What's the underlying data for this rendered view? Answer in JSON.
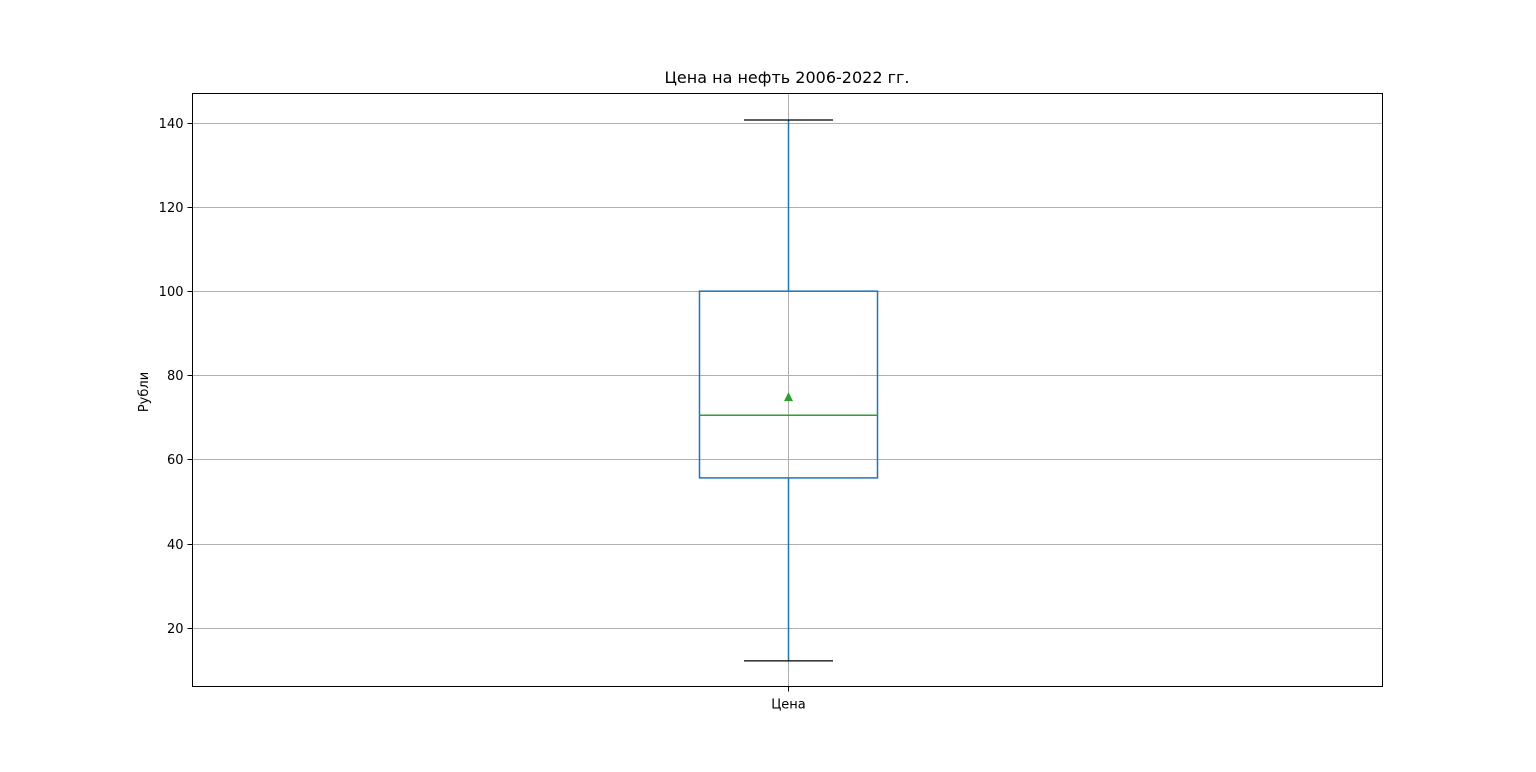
{
  "chart_data": {
    "type": "box",
    "title": "Цена на нефть 2006-2022 гг.",
    "xlabel": "",
    "ylabel": "Рубли",
    "categories": [
      "Цена"
    ],
    "ylim": [
      6,
      147
    ],
    "yticks": [
      20,
      40,
      60,
      80,
      100,
      120,
      140
    ],
    "grid": true,
    "boxes": [
      {
        "category": "Цена",
        "whisker_low": 12.1,
        "q1": 55.6,
        "median": 70.5,
        "mean": 74.8,
        "q3": 100.0,
        "whisker_high": 140.7
      }
    ],
    "colors": {
      "box": "#1f77b4",
      "median": "#2ca02c",
      "mean": "#2ca02c",
      "caps": "#000000",
      "grid": "#b0b0b0"
    }
  }
}
